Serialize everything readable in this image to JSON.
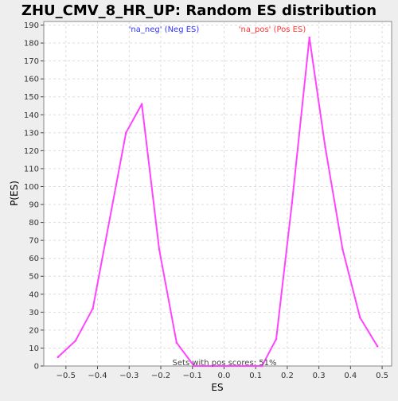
{
  "chart_data": {
    "type": "line",
    "title": "ZHU_CMV_8_HR_UP: Random ES distribution",
    "xlabel": "ES",
    "ylabel": "P(ES)",
    "xlim": [
      -0.57,
      0.53
    ],
    "ylim": [
      0,
      192
    ],
    "x_ticks": [
      -0.5,
      -0.4,
      -0.3,
      -0.2,
      -0.1,
      0.0,
      0.1,
      0.2,
      0.3,
      0.4,
      0.5
    ],
    "x_tick_labels": [
      "−0.5",
      "−0.4",
      "−0.3",
      "−0.2",
      "−0.1",
      "0.0",
      "0.1",
      "0.2",
      "0.3",
      "0.4",
      "0.5"
    ],
    "y_ticks": [
      0,
      10,
      20,
      30,
      40,
      50,
      60,
      70,
      80,
      90,
      100,
      110,
      120,
      130,
      140,
      150,
      160,
      170,
      180,
      190
    ],
    "grid": true,
    "legend": [
      {
        "label": "'na_neg' (Neg ES)",
        "color": "#3333ff"
      },
      {
        "label": "'na_pos' (Pos ES)",
        "color": "#ff3333"
      }
    ],
    "legend_position": "top",
    "annotation": "Sets with pos scores: 51%",
    "line_color": "#ff44ff",
    "series": [
      {
        "x": [
          -0.525,
          -0.47,
          -0.415,
          -0.31,
          -0.26,
          -0.205,
          -0.15,
          -0.095,
          -0.04,
          0.01,
          0.065,
          0.12,
          0.165,
          0.215,
          0.27,
          0.32,
          0.375,
          0.43,
          0.485
        ],
        "values": [
          5,
          14,
          32,
          130,
          146,
          65,
          13,
          0,
          0,
          0,
          0,
          0,
          15,
          91,
          183,
          122,
          65,
          27,
          11
        ]
      }
    ]
  }
}
